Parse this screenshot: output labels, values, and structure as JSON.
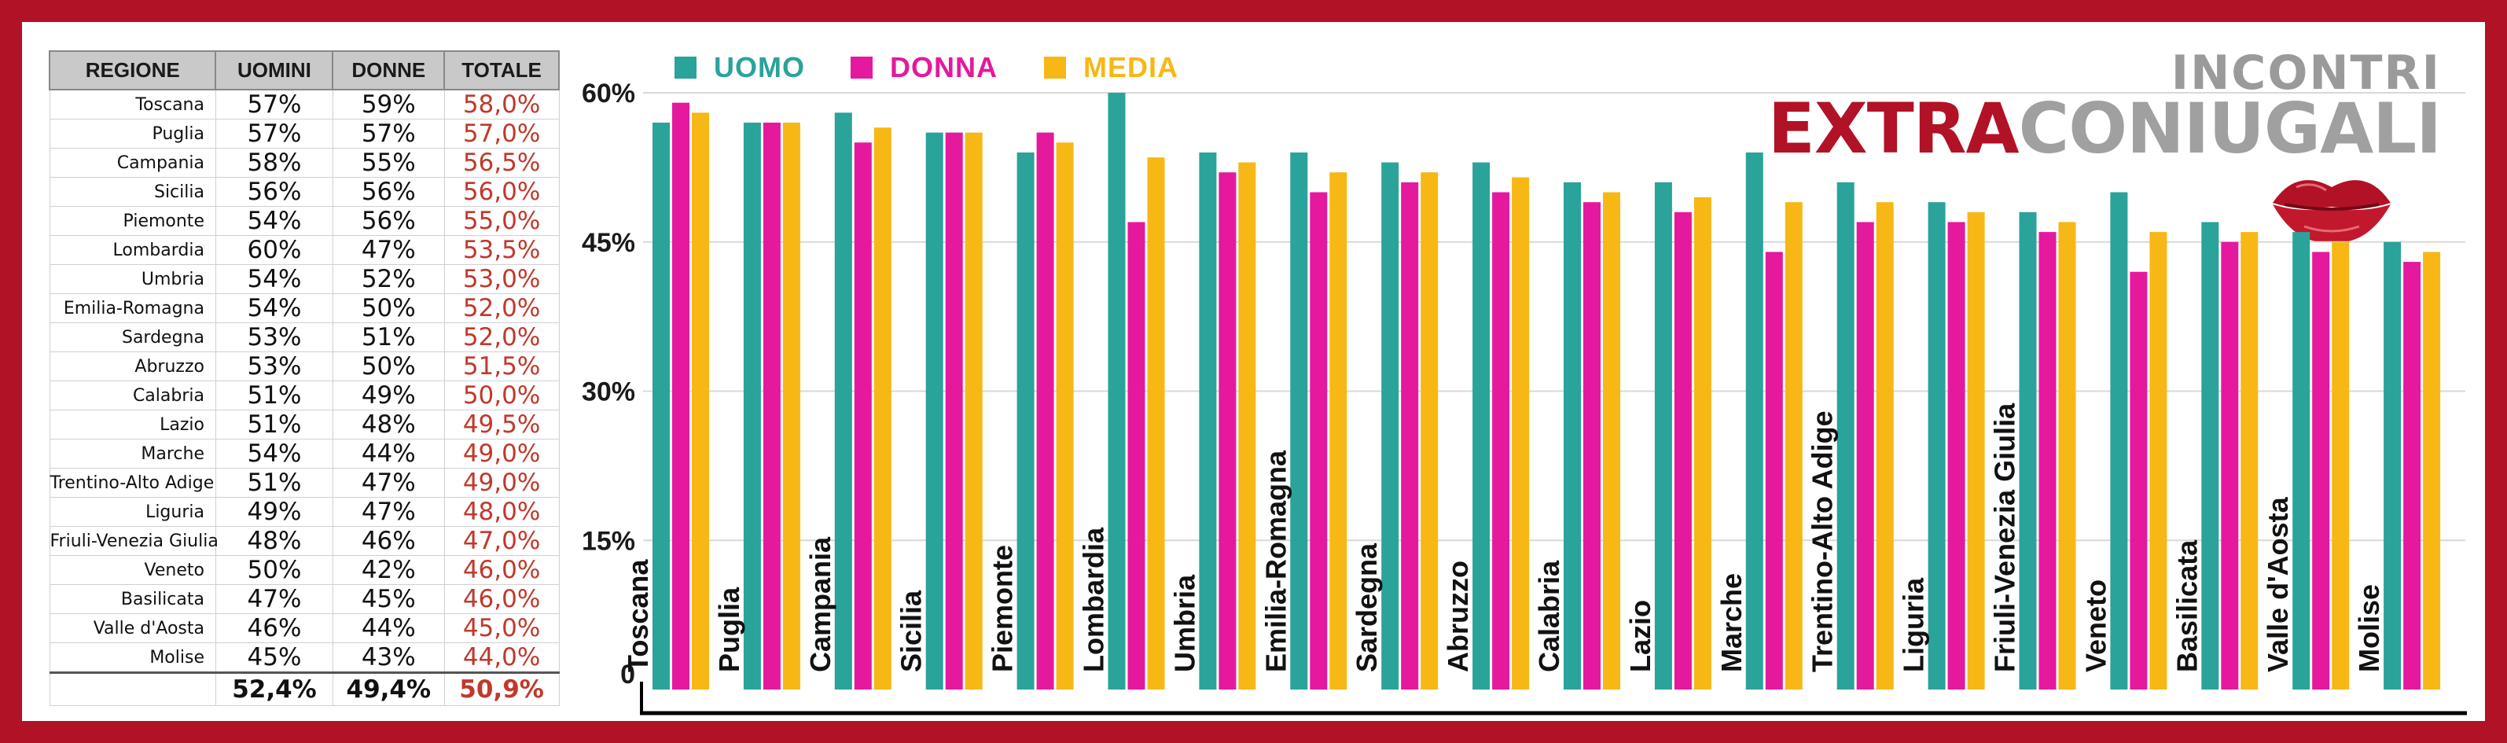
{
  "table": {
    "headers": [
      "REGIONE",
      "UOMINI",
      "DONNE",
      "TOTALE"
    ],
    "rows": [
      {
        "regione": "Toscana",
        "uomini": "57%",
        "donne": "59%",
        "totale": "58,0%"
      },
      {
        "regione": "Puglia",
        "uomini": "57%",
        "donne": "57%",
        "totale": "57,0%"
      },
      {
        "regione": "Campania",
        "uomini": "58%",
        "donne": "55%",
        "totale": "56,5%"
      },
      {
        "regione": "Sicilia",
        "uomini": "56%",
        "donne": "56%",
        "totale": "56,0%"
      },
      {
        "regione": "Piemonte",
        "uomini": "54%",
        "donne": "56%",
        "totale": "55,0%"
      },
      {
        "regione": "Lombardia",
        "uomini": "60%",
        "donne": "47%",
        "totale": "53,5%"
      },
      {
        "regione": "Umbria",
        "uomini": "54%",
        "donne": "52%",
        "totale": "53,0%"
      },
      {
        "regione": "Emilia-Romagna",
        "uomini": "54%",
        "donne": "50%",
        "totale": "52,0%"
      },
      {
        "regione": "Sardegna",
        "uomini": "53%",
        "donne": "51%",
        "totale": "52,0%"
      },
      {
        "regione": "Abruzzo",
        "uomini": "53%",
        "donne": "50%",
        "totale": "51,5%"
      },
      {
        "regione": "Calabria",
        "uomini": "51%",
        "donne": "49%",
        "totale": "50,0%"
      },
      {
        "regione": "Lazio",
        "uomini": "51%",
        "donne": "48%",
        "totale": "49,5%"
      },
      {
        "regione": "Marche",
        "uomini": "54%",
        "donne": "44%",
        "totale": "49,0%"
      },
      {
        "regione": "Trentino-Alto Adige",
        "uomini": "51%",
        "donne": "47%",
        "totale": "49,0%"
      },
      {
        "regione": "Liguria",
        "uomini": "49%",
        "donne": "47%",
        "totale": "48,0%"
      },
      {
        "regione": "Friuli-Venezia Giulia",
        "uomini": "48%",
        "donne": "46%",
        "totale": "47,0%"
      },
      {
        "regione": "Veneto",
        "uomini": "50%",
        "donne": "42%",
        "totale": "46,0%"
      },
      {
        "regione": "Basilicata",
        "uomini": "47%",
        "donne": "45%",
        "totale": "46,0%"
      },
      {
        "regione": "Valle d'Aosta",
        "uomini": "46%",
        "donne": "44%",
        "totale": "45,0%"
      },
      {
        "regione": "Molise",
        "uomini": "45%",
        "donne": "43%",
        "totale": "44,0%"
      }
    ],
    "totals": {
      "uomini": "52,4%",
      "donne": "49,4%",
      "totale": "50,9%"
    }
  },
  "logo": {
    "line1": "INCONTRI",
    "line2a": "EXTRA",
    "line2b": "CONIUGALI"
  },
  "colors": {
    "frame": "#b11226",
    "uomo": "#2aa39a",
    "donna": "#e5199d",
    "media": "#f7b815",
    "totale_text": "#c0392b"
  },
  "chart_data": {
    "type": "bar",
    "categories": [
      "Toscana",
      "Puglia",
      "Campania",
      "Sicilia",
      "Piemonte",
      "Lombardia",
      "Umbria",
      "Emilia-Romagna",
      "Sardegna",
      "Abruzzo",
      "Calabria",
      "Lazio",
      "Marche",
      "Trentino-Alto Adige",
      "Liguria",
      "Friuli-Venezia Giulia",
      "Veneto",
      "Basilicata",
      "Valle d'Aosta",
      "Molise"
    ],
    "series": [
      {
        "name": "UOMO",
        "color": "#2aa39a",
        "values": [
          57,
          57,
          58,
          56,
          54,
          60,
          54,
          54,
          53,
          53,
          51,
          51,
          54,
          51,
          49,
          48,
          50,
          47,
          46,
          45
        ]
      },
      {
        "name": "DONNA",
        "color": "#e5199d",
        "values": [
          59,
          57,
          55,
          56,
          56,
          47,
          52,
          50,
          51,
          50,
          49,
          48,
          44,
          47,
          47,
          46,
          42,
          45,
          44,
          43
        ]
      },
      {
        "name": "MEDIA",
        "color": "#f7b815",
        "values": [
          58,
          57,
          56.5,
          56,
          55,
          53.5,
          53,
          52,
          52,
          51.5,
          50,
          49.5,
          49,
          49,
          48,
          47,
          46,
          46,
          45,
          44
        ]
      }
    ],
    "yticks": [
      "0",
      "15%",
      "30%",
      "45%",
      "60%"
    ],
    "ytick_values": [
      0,
      15,
      30,
      45,
      60
    ],
    "ylim": [
      0,
      60
    ],
    "grid": true,
    "legend": "top-left"
  }
}
